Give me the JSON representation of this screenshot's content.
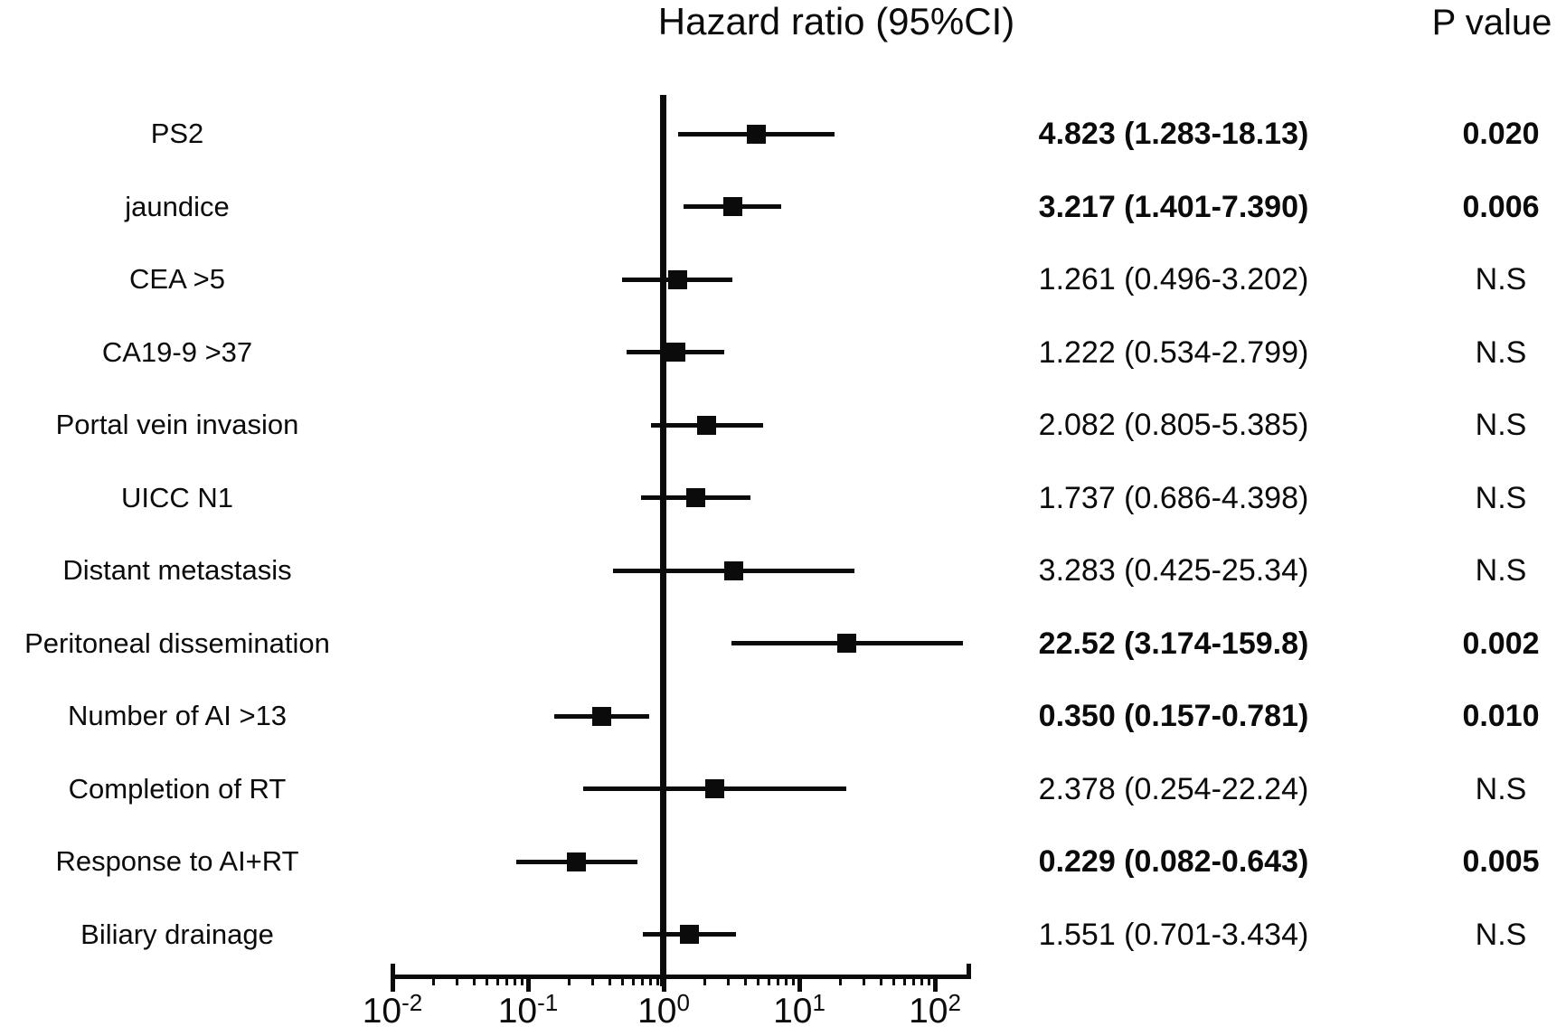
{
  "figure": {
    "title": "Hazard ratio (95%CI)",
    "p_value_header": "P value"
  },
  "colors": {
    "ink": "#0b0b0b",
    "background": "#ffffff"
  },
  "chart_data": {
    "type": "forest",
    "x_scale": "log10",
    "x_domain": [
      0.01,
      100
    ],
    "reference_value": 1,
    "grid": "off",
    "x_ticks": [
      {
        "base": "10",
        "exponent": "-2",
        "value": 0.01
      },
      {
        "base": "10",
        "exponent": "-1",
        "value": 0.1
      },
      {
        "base": "10",
        "exponent": "0",
        "value": 1
      },
      {
        "base": "10",
        "exponent": "1",
        "value": 10
      },
      {
        "base": "10",
        "exponent": "2",
        "value": 100
      }
    ],
    "rows": [
      {
        "label": "PS2",
        "hr": 4.823,
        "ci_low": 1.283,
        "ci_high": 18.13,
        "hr_text": "4.823 (1.283-18.13)",
        "p_text": "0.020",
        "significant": true
      },
      {
        "label": "jaundice",
        "hr": 3.217,
        "ci_low": 1.401,
        "ci_high": 7.39,
        "hr_text": "3.217 (1.401-7.390)",
        "p_text": "0.006",
        "significant": true
      },
      {
        "label": "CEA >5",
        "hr": 1.261,
        "ci_low": 0.496,
        "ci_high": 3.202,
        "hr_text": "1.261 (0.496-3.202)",
        "p_text": "N.S",
        "significant": false
      },
      {
        "label": "CA19-9 >37",
        "hr": 1.222,
        "ci_low": 0.534,
        "ci_high": 2.799,
        "hr_text": "1.222 (0.534-2.799)",
        "p_text": "N.S",
        "significant": false
      },
      {
        "label": "Portal vein invasion",
        "hr": 2.082,
        "ci_low": 0.805,
        "ci_high": 5.385,
        "hr_text": "2.082 (0.805-5.385)",
        "p_text": "N.S",
        "significant": false
      },
      {
        "label": "UICC N1",
        "hr": 1.737,
        "ci_low": 0.686,
        "ci_high": 4.398,
        "hr_text": "1.737 (0.686-4.398)",
        "p_text": "N.S",
        "significant": false
      },
      {
        "label": "Distant metastasis",
        "hr": 3.283,
        "ci_low": 0.425,
        "ci_high": 25.34,
        "hr_text": "3.283 (0.425-25.34)",
        "p_text": "N.S",
        "significant": false
      },
      {
        "label": "Peritoneal dissemination",
        "hr": 22.52,
        "ci_low": 3.174,
        "ci_high": 159.8,
        "hr_text": "22.52 (3.174-159.8)",
        "p_text": "0.002",
        "significant": true
      },
      {
        "label": "Number of AI >13",
        "hr": 0.35,
        "ci_low": 0.157,
        "ci_high": 0.781,
        "hr_text": "0.350 (0.157-0.781)",
        "p_text": "0.010",
        "significant": true
      },
      {
        "label": "Completion of RT",
        "hr": 2.378,
        "ci_low": 0.254,
        "ci_high": 22.24,
        "hr_text": "2.378 (0.254-22.24)",
        "p_text": "N.S",
        "significant": false
      },
      {
        "label": "Response to AI+RT",
        "hr": 0.229,
        "ci_low": 0.082,
        "ci_high": 0.643,
        "hr_text": "0.229 (0.082-0.643)",
        "p_text": "0.005",
        "significant": true
      },
      {
        "label": "Biliary drainage",
        "hr": 1.551,
        "ci_low": 0.701,
        "ci_high": 3.434,
        "hr_text": "1.551 (0.701-3.434)",
        "p_text": "N.S",
        "significant": false
      }
    ]
  }
}
